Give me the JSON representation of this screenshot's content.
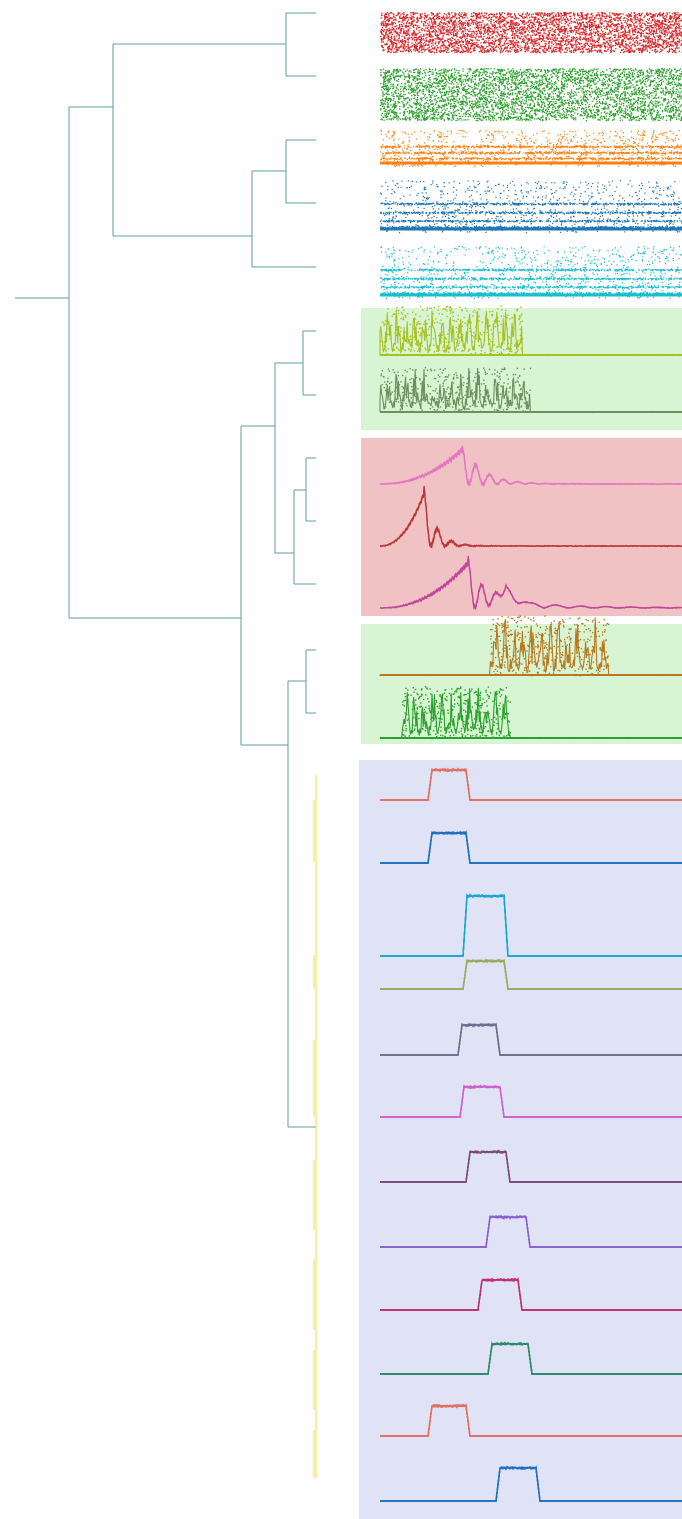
{
  "figure": {
    "tree_color": "#5f9ea0",
    "groups": [
      {
        "id": "green-group-1",
        "color": "#d8f5d3"
      },
      {
        "id": "red-group",
        "color": "#f0c2c4"
      },
      {
        "id": "green-group-2",
        "color": "#d8f5d3"
      },
      {
        "id": "blue-group",
        "color": "#e0e3f5"
      }
    ],
    "series": [
      {
        "id": "noise-red",
        "color": "#d62728",
        "kind": "noise",
        "texture": "dense"
      },
      {
        "id": "noise-green",
        "color": "#2ca02c",
        "kind": "noise",
        "texture": "dense"
      },
      {
        "id": "noise-orange",
        "color": "#ff7f0e",
        "kind": "noise",
        "texture": "banded"
      },
      {
        "id": "noise-blue",
        "color": "#1f77b4",
        "kind": "noise",
        "texture": "banded"
      },
      {
        "id": "noise-cyan",
        "color": "#17becf",
        "kind": "noise",
        "texture": "banded"
      },
      {
        "id": "burst-olive",
        "color": "#a8c020",
        "kind": "burst",
        "group": "green-group-1"
      },
      {
        "id": "burst-gray",
        "color": "#6f8f5f",
        "kind": "burst",
        "group": "green-group-1"
      },
      {
        "id": "oscillation-pink",
        "color": "#e377c2",
        "kind": "oscillation",
        "group": "red-group"
      },
      {
        "id": "oscillation-brown",
        "color": "#b8383c",
        "kind": "oscillation",
        "group": "red-group"
      },
      {
        "id": "oscillation-magenta",
        "color": "#c2479c",
        "kind": "oscillation",
        "group": "red-group"
      },
      {
        "id": "burst-brown",
        "color": "#b87820",
        "kind": "burst",
        "group": "green-group-2"
      },
      {
        "id": "burst-green",
        "color": "#2ca02c",
        "kind": "burst",
        "group": "green-group-2"
      },
      {
        "id": "pulse-salmon",
        "color": "#e07060",
        "kind": "pulse",
        "group": "blue-group"
      },
      {
        "id": "pulse-blue",
        "color": "#1f6fc0",
        "kind": "pulse",
        "group": "blue-group"
      },
      {
        "id": "pulse-cyan",
        "color": "#17a8d0",
        "kind": "pulse",
        "group": "blue-group"
      },
      {
        "id": "pulse-olive",
        "color": "#9aa860",
        "kind": "pulse",
        "group": "blue-group"
      },
      {
        "id": "pulse-slate",
        "color": "#6a6f90",
        "kind": "pulse",
        "group": "blue-group"
      },
      {
        "id": "pulse-orchid",
        "color": "#d060c8",
        "kind": "pulse",
        "group": "blue-group"
      },
      {
        "id": "pulse-plum",
        "color": "#7a4a7a",
        "kind": "pulse",
        "group": "blue-group"
      },
      {
        "id": "pulse-violet",
        "color": "#8a60d0",
        "kind": "pulse",
        "group": "blue-group"
      },
      {
        "id": "pulse-crimson",
        "color": "#c0306a",
        "kind": "pulse",
        "group": "blue-group"
      },
      {
        "id": "pulse-teal",
        "color": "#2a8a6a",
        "kind": "pulse",
        "group": "blue-group"
      },
      {
        "id": "pulse-salmon-2",
        "color": "#e07060",
        "kind": "pulse",
        "group": "blue-group"
      },
      {
        "id": "pulse-blue-2",
        "color": "#2070c0",
        "kind": "pulse",
        "group": "blue-group"
      }
    ]
  }
}
